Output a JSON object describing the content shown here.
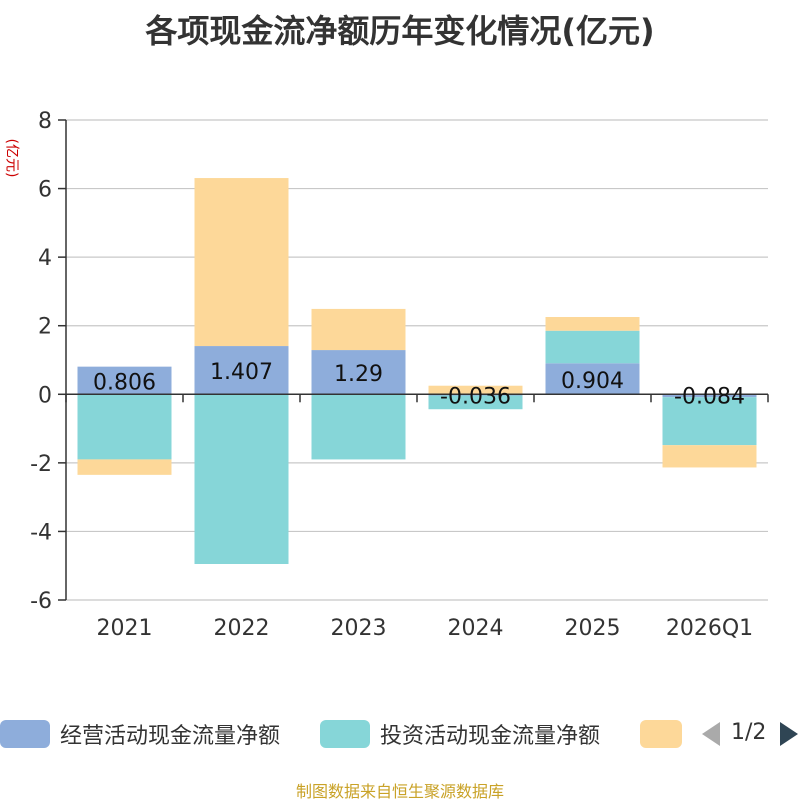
{
  "title": "各项现金流净额历年变化情况(亿元)",
  "unit_label": "(亿元)",
  "source": "制图数据来自恒生聚源数据库",
  "pager": {
    "text": "1/2"
  },
  "legend": [
    {
      "name": "经营活动现金流量净额",
      "color": "#8eaddb"
    },
    {
      "name": "投资活动现金流量净额",
      "color": "#86d6d8"
    },
    {
      "name": "",
      "color": "#fdd899"
    }
  ],
  "chart_data": {
    "type": "bar",
    "stacked": true,
    "categories": [
      "2021",
      "2022",
      "2023",
      "2024",
      "2025",
      "2026Q1"
    ],
    "ylim": [
      -6,
      8
    ],
    "yticks": [
      -6,
      -4,
      -2,
      0,
      2,
      4,
      6,
      8
    ],
    "grid": true,
    "legend_position": "bottom",
    "series": [
      {
        "name": "经营活动现金流量净额",
        "color": "#8eaddb",
        "values": [
          0.806,
          1.407,
          1.29,
          -0.036,
          0.904,
          -0.084
        ]
      },
      {
        "name": "投资活动现金流量净额",
        "color": "#86d6d8",
        "values": [
          -1.9,
          -4.95,
          -1.9,
          -0.4,
          0.95,
          -1.4
        ]
      },
      {
        "name": "",
        "color": "#fdd899",
        "values": [
          -0.45,
          4.9,
          1.2,
          0.25,
          0.4,
          -0.65
        ]
      }
    ],
    "data_labels": [
      "0.806",
      "1.407",
      "1.29",
      "-0.036",
      "0.904",
      "-0.084"
    ]
  }
}
